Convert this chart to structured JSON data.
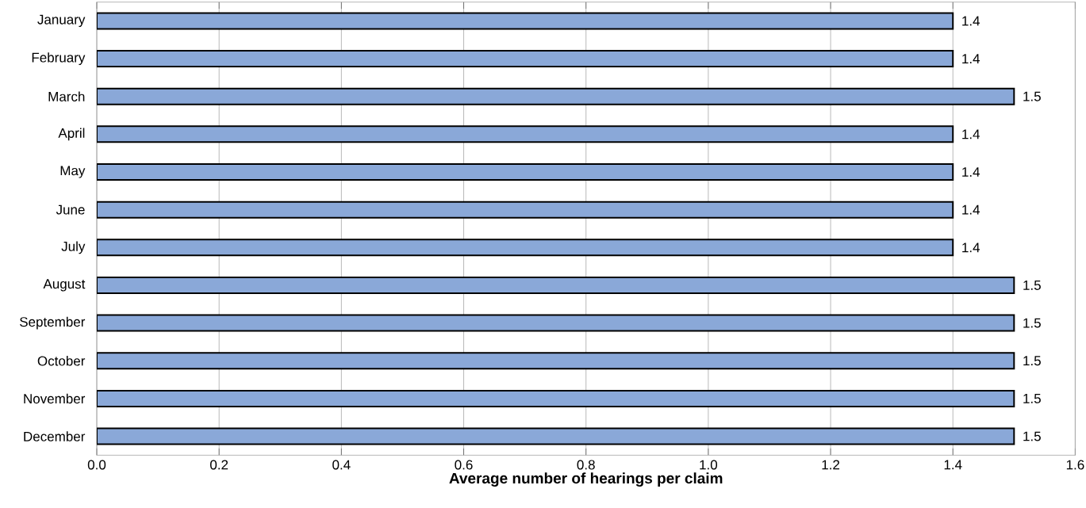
{
  "chart_data": {
    "type": "bar",
    "orientation": "horizontal",
    "xlabel": "Average number of hearings per claim",
    "categories": [
      "January",
      "February",
      "March",
      "April",
      "May",
      "June",
      "July",
      "August",
      "September",
      "October",
      "November",
      "December"
    ],
    "values": [
      1.4,
      1.4,
      1.5,
      1.4,
      1.4,
      1.4,
      1.4,
      1.5,
      1.5,
      1.5,
      1.5,
      1.5
    ],
    "color": "#8aa8d8",
    "data_labels": true,
    "grid": "x",
    "xlim": [
      0,
      1.6
    ],
    "xticks": [
      {
        "value": 0,
        "label": "0.0"
      },
      {
        "value": 0.2,
        "label": "0.2"
      },
      {
        "value": 0.4,
        "label": "0.4"
      },
      {
        "value": 0.6,
        "label": "0.6"
      },
      {
        "value": 0.8,
        "label": "0.8"
      },
      {
        "value": 1.0,
        "label": "1.0"
      },
      {
        "value": 1.2,
        "label": "1.2"
      },
      {
        "value": 1.4,
        "label": "1.4"
      },
      {
        "value": 1.6,
        "label": "1.6"
      }
    ]
  }
}
